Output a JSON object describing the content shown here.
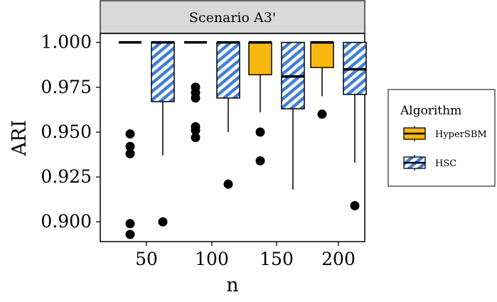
{
  "colors": {
    "hypersbm_fill": "#f9b80f",
    "hsc_fill": "#ffffff",
    "hsc_hatch": "#3f7fd8",
    "outline": "#000000",
    "strip_bg": "#d9d9d9",
    "outlier": "#000000"
  },
  "legend": {
    "title": "Algorithm",
    "items": [
      {
        "label": "HyperSBM",
        "key": "hypersbm"
      },
      {
        "label": "HSC",
        "key": "hsc"
      }
    ]
  },
  "chart_data": {
    "type": "boxplot",
    "facet_label": "Scenario A3'",
    "xlabel": "n",
    "ylabel": "ARI",
    "categories": [
      "50",
      "100",
      "150",
      "200"
    ],
    "ylim": [
      0.889,
      1.005
    ],
    "yticks": [
      {
        "value": 0.9,
        "label": "0.900"
      },
      {
        "value": 0.925,
        "label": "0.925"
      },
      {
        "value": 0.95,
        "label": "0.950"
      },
      {
        "value": 0.975,
        "label": "0.975"
      },
      {
        "value": 1.0,
        "label": "1.000"
      }
    ],
    "grid": false,
    "legend_position": "right",
    "series": [
      {
        "name": "HyperSBM",
        "key": "hypersbm",
        "boxes": [
          {
            "category": "50",
            "q1": 1.0,
            "median": 1.0,
            "q3": 1.0,
            "whisker_low": 1.0,
            "whisker_high": 1.0,
            "outliers": [
              0.949,
              0.942,
              0.938,
              0.899,
              0.893
            ]
          },
          {
            "category": "100",
            "q1": 1.0,
            "median": 1.0,
            "q3": 1.0,
            "whisker_low": 1.0,
            "whisker_high": 1.0,
            "outliers": [
              0.975,
              0.972,
              0.969,
              0.953,
              0.951,
              0.947
            ]
          },
          {
            "category": "150",
            "q1": 0.982,
            "median": 1.0,
            "q3": 1.0,
            "whisker_low": 0.961,
            "whisker_high": 1.0,
            "outliers": [
              0.95,
              0.934
            ]
          },
          {
            "category": "200",
            "q1": 0.986,
            "median": 1.0,
            "q3": 1.0,
            "whisker_low": 0.97,
            "whisker_high": 1.0,
            "outliers": [
              0.96
            ]
          }
        ]
      },
      {
        "name": "HSC",
        "key": "hsc",
        "boxes": [
          {
            "category": "50",
            "q1": 0.967,
            "median": 1.0,
            "q3": 1.0,
            "whisker_low": 0.937,
            "whisker_high": 1.0,
            "outliers": [
              0.9
            ]
          },
          {
            "category": "100",
            "q1": 0.969,
            "median": 1.0,
            "q3": 1.0,
            "whisker_low": 0.95,
            "whisker_high": 1.0,
            "outliers": [
              0.921
            ]
          },
          {
            "category": "150",
            "q1": 0.963,
            "median": 0.981,
            "q3": 1.0,
            "whisker_low": 0.918,
            "whisker_high": 1.0,
            "outliers": []
          },
          {
            "category": "200",
            "q1": 0.971,
            "median": 0.985,
            "q3": 1.0,
            "whisker_low": 0.933,
            "whisker_high": 1.0,
            "outliers": [
              0.909
            ]
          }
        ]
      }
    ]
  }
}
